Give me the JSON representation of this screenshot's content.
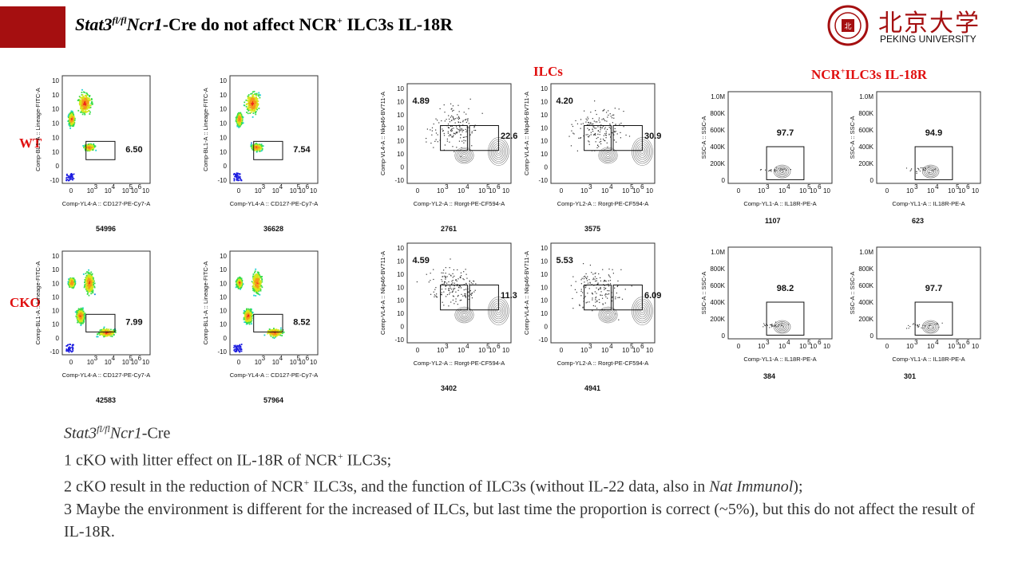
{
  "slide": {
    "title_gene": "Stat3",
    "title_sup": "fl/fl",
    "title_cre": "Ncr1",
    "title_rest": "-Cre do not affect NCR",
    "title_plus": "+",
    "title_tail": " ILC3s IL-18R"
  },
  "logo": {
    "chinese": "北京大学",
    "english": "PEKING UNIVERSITY",
    "seal_text": "PEKING UNIVERSITY 1898"
  },
  "sections": {
    "ilcs": "ILCs",
    "ncr_prefix": "NCR",
    "ncr_plus": "+",
    "ncr_rest": "ILC3s  IL-18R"
  },
  "rows": {
    "wt": "WT",
    "cko": "CKO"
  },
  "axes": {
    "lin_x": "Comp-YL4-A :: CD127-PE-Cy7-A",
    "lin_y": "Comp-BL1-A :: Lineage-FITC-A",
    "ilc_x": "Comp-YL2-A :: Rorgt-PE-CF594-A",
    "ilc_y": "Comp-VL4-A :: Nkp46-BV711-A",
    "il_x": "Comp-YL1-A :: IL18R-PE-A",
    "il_y": "SSC-A :: SSC-A"
  },
  "plots": {
    "wt": {
      "lin1": {
        "gate": "6.50",
        "count": "54996"
      },
      "lin2": {
        "gate": "7.54",
        "count": "36628"
      },
      "ilc1": {
        "gate_a": "4.89",
        "gate_b": "22.6",
        "count": "2761"
      },
      "ilc2": {
        "gate_a": "4.20",
        "gate_b": "30.9",
        "count": "3575"
      },
      "il1": {
        "gate": "97.7",
        "count": "1107"
      },
      "il2": {
        "gate": "94.9",
        "count": "623"
      }
    },
    "cko": {
      "lin1": {
        "gate": "7.99",
        "count": "42583"
      },
      "lin2": {
        "gate": "8.52",
        "count": "57964"
      },
      "ilc1": {
        "gate_a": "4.59",
        "gate_b": "11.3",
        "count": "3402"
      },
      "ilc2": {
        "gate_a": "5.53",
        "gate_b": "6.09",
        "count": "4941"
      },
      "il1": {
        "gate": "98.2",
        "count": "384"
      },
      "il2": {
        "gate": "97.7",
        "count": "301"
      }
    }
  },
  "notes": {
    "gene": "Stat3",
    "sup": "fl/fl",
    "cre": "Ncr1",
    "cre_suffix": "-Cre",
    "line1_a": "1 cKO with litter effect on IL-18R of NCR",
    "line1_plus": "+",
    "line1_b": " ILC3s;",
    "line2_a": "2 cKO result in the reduction of NCR",
    "line2_plus": "+",
    "line2_b": " ILC3s, and the function of ILC3s (without IL-22 data, also in ",
    "line2_journal": "Nat Immunol",
    "line2_c": ");",
    "line3": "3 Maybe the environment is different for the increased of ILCs, but last time the proportion is correct (~5%), but this do not affect the result of IL-18R."
  },
  "colors": {
    "accent_red": "#a50f10",
    "label_red": "#e01010",
    "gate_box": "#111111"
  }
}
